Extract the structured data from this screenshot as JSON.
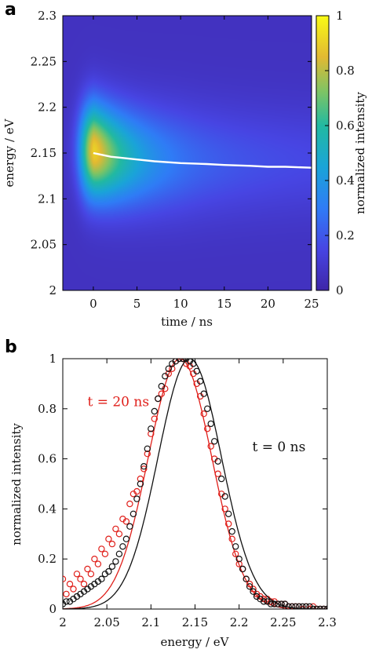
{
  "chart_data": [
    {
      "id": "a",
      "type": "heatmap",
      "panel_label": "a",
      "xlabel": "time / ns",
      "ylabel": "energy / eV",
      "colorbar_label": "normalized intensity",
      "xlim": [
        -3.5,
        25
      ],
      "ylim": [
        2.0,
        2.3
      ],
      "clim": [
        0,
        1
      ],
      "x_ticks": [
        "0",
        "5",
        "10",
        "15",
        "20",
        "25"
      ],
      "x_tick_values": [
        0,
        5,
        10,
        15,
        20,
        25
      ],
      "y_ticks": [
        "2",
        "2.05",
        "2.1",
        "2.15",
        "2.2",
        "2.25",
        "2.3"
      ],
      "y_tick_values": [
        2.0,
        2.05,
        2.1,
        2.15,
        2.2,
        2.25,
        2.3
      ],
      "colorbar_ticks": [
        "0",
        "0.2",
        "0.4",
        "0.6",
        "0.8",
        "1"
      ],
      "colorbar_tick_values": [
        0,
        0.2,
        0.4,
        0.6,
        0.8,
        1.0
      ],
      "peak_trace": {
        "color": "#ffffff",
        "x": [
          0,
          1,
          2,
          3,
          5,
          7,
          10,
          13,
          15,
          18,
          20,
          22,
          25
        ],
        "y": [
          2.15,
          2.148,
          2.146,
          2.145,
          2.143,
          2.141,
          2.139,
          2.138,
          2.137,
          2.136,
          2.135,
          2.135,
          2.134
        ]
      }
    },
    {
      "id": "b",
      "type": "line",
      "panel_label": "b",
      "xlabel": "energy / eV",
      "ylabel": "normalized intensity",
      "xlim": [
        2.0,
        2.3
      ],
      "ylim": [
        0,
        1
      ],
      "x_ticks": [
        "2",
        "2.05",
        "2.1",
        "2.15",
        "2.2",
        "2.25",
        "2.3"
      ],
      "x_tick_values": [
        2.0,
        2.05,
        2.1,
        2.15,
        2.2,
        2.25,
        2.3
      ],
      "y_ticks": [
        "0",
        "0.2",
        "0.4",
        "0.6",
        "0.8",
        "1"
      ],
      "y_tick_values": [
        0,
        0.2,
        0.4,
        0.6,
        0.8,
        1.0
      ],
      "annotations": [
        {
          "text": "t = 20 ns",
          "color": "#e0201b",
          "x": 2.028,
          "y": 0.81
        },
        {
          "text": "t = 0 ns",
          "color": "#111111",
          "x": 2.215,
          "y": 0.63
        }
      ],
      "series": [
        {
          "color": "#e0201b",
          "fit": {
            "center": 2.133,
            "sigma": 0.036
          },
          "points": {
            "x": [
              2.0,
              2.004,
              2.008,
              2.012,
              2.016,
              2.02,
              2.024,
              2.028,
              2.032,
              2.036,
              2.04,
              2.044,
              2.048,
              2.052,
              2.056,
              2.06,
              2.064,
              2.068,
              2.072,
              2.076,
              2.08,
              2.084,
              2.088,
              2.092,
              2.096,
              2.1,
              2.104,
              2.108,
              2.112,
              2.116,
              2.12,
              2.124,
              2.128,
              2.132,
              2.136,
              2.14,
              2.144,
              2.148,
              2.152,
              2.156,
              2.16,
              2.164,
              2.168,
              2.172,
              2.176,
              2.18,
              2.184,
              2.188,
              2.192,
              2.196,
              2.2,
              2.204,
              2.208,
              2.212,
              2.216,
              2.22,
              2.224,
              2.228,
              2.232,
              2.236,
              2.24,
              2.244,
              2.248,
              2.252,
              2.256,
              2.26,
              2.264,
              2.268,
              2.272,
              2.276,
              2.28,
              2.284,
              2.288,
              2.292,
              2.296,
              2.3
            ],
            "y": [
              0.12,
              0.06,
              0.1,
              0.08,
              0.14,
              0.12,
              0.1,
              0.16,
              0.14,
              0.2,
              0.18,
              0.24,
              0.22,
              0.28,
              0.26,
              0.32,
              0.3,
              0.36,
              0.35,
              0.42,
              0.46,
              0.47,
              0.52,
              0.56,
              0.62,
              0.7,
              0.76,
              0.84,
              0.86,
              0.88,
              0.94,
              0.96,
              0.99,
              1.0,
              1.0,
              0.98,
              0.97,
              0.94,
              0.9,
              0.85,
              0.78,
              0.72,
              0.65,
              0.6,
              0.54,
              0.46,
              0.4,
              0.34,
              0.28,
              0.22,
              0.18,
              0.16,
              0.12,
              0.1,
              0.08,
              0.06,
              0.05,
              0.04,
              0.04,
              0.03,
              0.03,
              0.02,
              0.02,
              0.02,
              0.01,
              0.01,
              0.01,
              0.01,
              0.0,
              0.01,
              0.0,
              0.01,
              0.0,
              0.0,
              0.0,
              0.0
            ]
          }
        },
        {
          "color": "#111111",
          "fit": {
            "center": 2.144,
            "sigma": 0.036
          },
          "points": {
            "x": [
              2.0,
              2.004,
              2.008,
              2.012,
              2.016,
              2.02,
              2.024,
              2.028,
              2.032,
              2.036,
              2.04,
              2.044,
              2.048,
              2.052,
              2.056,
              2.06,
              2.064,
              2.068,
              2.072,
              2.076,
              2.08,
              2.084,
              2.088,
              2.092,
              2.096,
              2.1,
              2.104,
              2.108,
              2.112,
              2.116,
              2.12,
              2.124,
              2.128,
              2.132,
              2.136,
              2.14,
              2.144,
              2.148,
              2.152,
              2.156,
              2.16,
              2.164,
              2.168,
              2.172,
              2.176,
              2.18,
              2.184,
              2.188,
              2.192,
              2.196,
              2.2,
              2.204,
              2.208,
              2.212,
              2.216,
              2.22,
              2.224,
              2.228,
              2.232,
              2.236,
              2.24,
              2.244,
              2.248,
              2.252,
              2.256,
              2.26,
              2.264,
              2.268,
              2.272,
              2.276,
              2.28,
              2.284,
              2.288,
              2.292,
              2.296,
              2.3
            ],
            "y": [
              0.02,
              0.03,
              0.03,
              0.04,
              0.05,
              0.06,
              0.07,
              0.08,
              0.09,
              0.1,
              0.11,
              0.12,
              0.14,
              0.15,
              0.17,
              0.19,
              0.22,
              0.25,
              0.28,
              0.33,
              0.38,
              0.44,
              0.5,
              0.57,
              0.64,
              0.72,
              0.79,
              0.84,
              0.89,
              0.93,
              0.96,
              0.98,
              0.99,
              1.0,
              1.0,
              1.0,
              0.99,
              0.98,
              0.95,
              0.91,
              0.86,
              0.8,
              0.74,
              0.67,
              0.59,
              0.52,
              0.45,
              0.38,
              0.31,
              0.25,
              0.2,
              0.16,
              0.12,
              0.09,
              0.07,
              0.05,
              0.04,
              0.03,
              0.03,
              0.02,
              0.02,
              0.02,
              0.02,
              0.02,
              0.01,
              0.01,
              0.01,
              0.01,
              0.01,
              0.01,
              0.01,
              0.0,
              0.0,
              0.0,
              0.0,
              0.0
            ]
          }
        }
      ]
    }
  ]
}
